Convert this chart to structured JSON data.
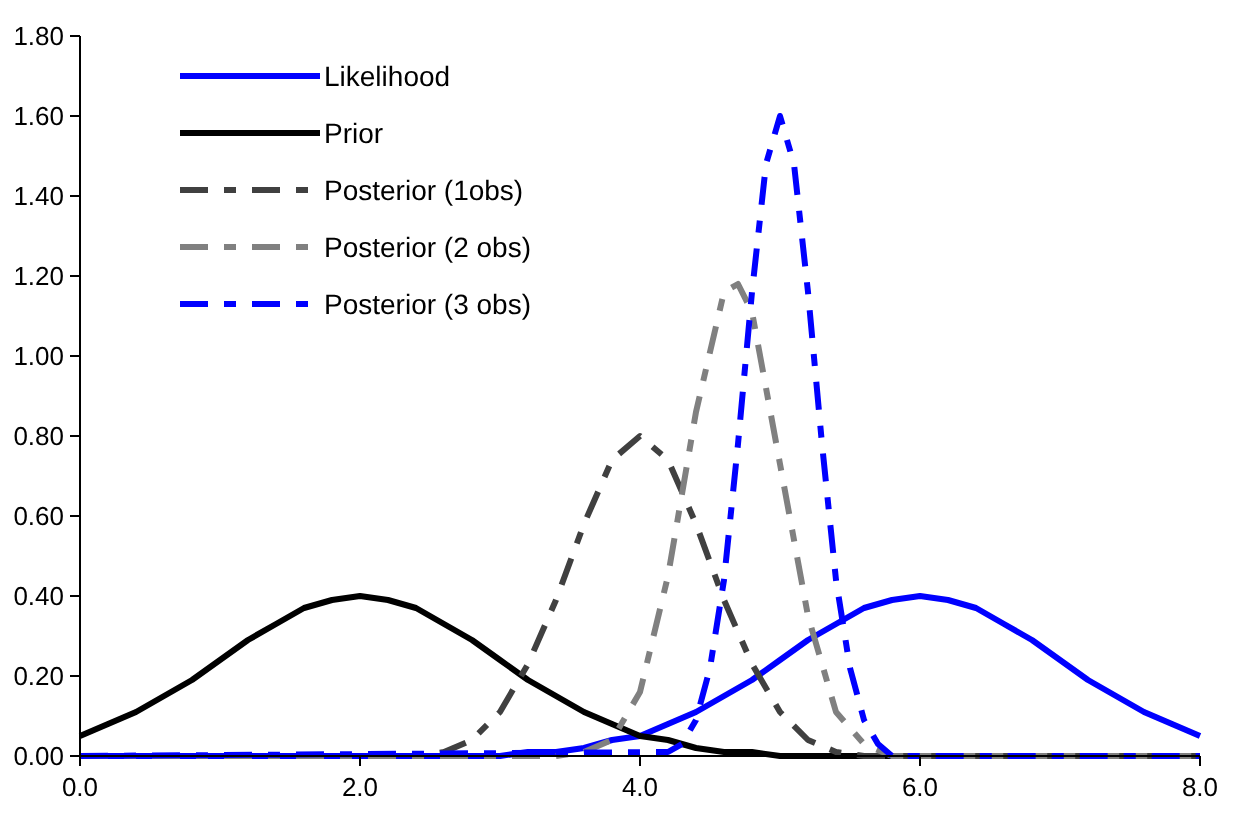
{
  "chart_data": {
    "type": "line",
    "xlim": [
      0,
      8
    ],
    "xticks": [
      {
        "value": 0,
        "label": "0.0"
      },
      {
        "value": 2,
        "label": "2.0"
      },
      {
        "value": 4,
        "label": "4.0"
      },
      {
        "value": 6,
        "label": "6.0"
      },
      {
        "value": 8,
        "label": "8.0"
      }
    ],
    "ylim": [
      0,
      1.8
    ],
    "yticks": [
      {
        "value": 0,
        "label": "0.00"
      },
      {
        "value": 0.2,
        "label": "0.20"
      },
      {
        "value": 0.4,
        "label": "0.40"
      },
      {
        "value": 0.6,
        "label": "0.60"
      },
      {
        "value": 0.8,
        "label": "0.80"
      },
      {
        "value": 1,
        "label": "1.00"
      },
      {
        "value": 1.2,
        "label": "1.20"
      },
      {
        "value": 1.4,
        "label": "1.40"
      },
      {
        "value": 1.6,
        "label": "1.60"
      },
      {
        "value": 1.8,
        "label": "1.80"
      }
    ],
    "grid": false,
    "legend": "top left",
    "marker": "none",
    "series": [
      {
        "name": "Likelihood",
        "color": "#0000ff",
        "line_style": "solid",
        "x": [
          0,
          1,
          2,
          3,
          3.2,
          3.4,
          3.6,
          3.8,
          4,
          4.2,
          4.4,
          4.6,
          4.8,
          5,
          5.2,
          5.4,
          5.6,
          5.8,
          6,
          6.2,
          6.4,
          6.6,
          6.8,
          7,
          7.2,
          7.4,
          7.6,
          7.8,
          8
        ],
        "values": [
          0,
          0,
          0,
          0,
          0.01,
          0.01,
          0.02,
          0.04,
          0.05,
          0.08,
          0.11,
          0.15,
          0.19,
          0.24,
          0.29,
          0.33,
          0.37,
          0.39,
          0.4,
          0.39,
          0.37,
          0.33,
          0.29,
          0.24,
          0.19,
          0.15,
          0.11,
          0.08,
          0.05
        ]
      },
      {
        "name": "Prior",
        "color": "#000000",
        "line_style": "solid",
        "x": [
          0,
          0.2,
          0.4,
          0.6,
          0.8,
          1,
          1.2,
          1.4,
          1.6,
          1.8,
          2,
          2.2,
          2.4,
          2.6,
          2.8,
          3,
          3.2,
          3.4,
          3.6,
          3.8,
          4,
          4.2,
          4.4,
          4.6,
          4.8,
          5,
          6,
          7,
          8
        ],
        "values": [
          0.05,
          0.08,
          0.11,
          0.15,
          0.19,
          0.24,
          0.29,
          0.33,
          0.37,
          0.39,
          0.4,
          0.39,
          0.37,
          0.33,
          0.29,
          0.24,
          0.19,
          0.15,
          0.11,
          0.08,
          0.05,
          0.04,
          0.02,
          0.01,
          0.01,
          0,
          0,
          0,
          0
        ]
      },
      {
        "name": "Posterior (1obs)",
        "color": "#404040",
        "line_style": "dashed",
        "x": [
          0,
          2.4,
          2.6,
          2.8,
          3,
          3.2,
          3.4,
          3.6,
          3.8,
          4,
          4.2,
          4.4,
          4.6,
          4.8,
          5,
          5.2,
          5.4,
          5.6,
          8
        ],
        "values": [
          0,
          0,
          0.01,
          0.04,
          0.11,
          0.23,
          0.39,
          0.58,
          0.74,
          0.8,
          0.74,
          0.58,
          0.39,
          0.23,
          0.11,
          0.04,
          0.01,
          0,
          0
        ]
      },
      {
        "name": "Posterior (2 obs)",
        "color": "#808080",
        "line_style": "dashed",
        "x": [
          0,
          3.4,
          3.6,
          3.8,
          4,
          4.2,
          4.4,
          4.6,
          4.7,
          4.8,
          5,
          5.2,
          5.4,
          5.6,
          5.8,
          8
        ],
        "values": [
          0,
          0,
          0.01,
          0.04,
          0.16,
          0.45,
          0.86,
          1.16,
          1.18,
          1.11,
          0.73,
          0.35,
          0.11,
          0.03,
          0,
          0
        ]
      },
      {
        "name": "Posterior (3 obs)",
        "color": "#0000ff",
        "line_style": "dashed",
        "x": [
          0,
          4.2,
          4.3,
          4.4,
          4.5,
          4.6,
          4.7,
          4.8,
          4.9,
          5,
          5.1,
          5.2,
          5.3,
          5.4,
          5.5,
          5.6,
          5.7,
          5.8,
          8
        ],
        "values": [
          0,
          0.01,
          0.03,
          0.09,
          0.22,
          0.44,
          0.78,
          1.16,
          1.48,
          1.6,
          1.48,
          1.16,
          0.78,
          0.44,
          0.22,
          0.09,
          0.03,
          0,
          0
        ]
      }
    ]
  }
}
